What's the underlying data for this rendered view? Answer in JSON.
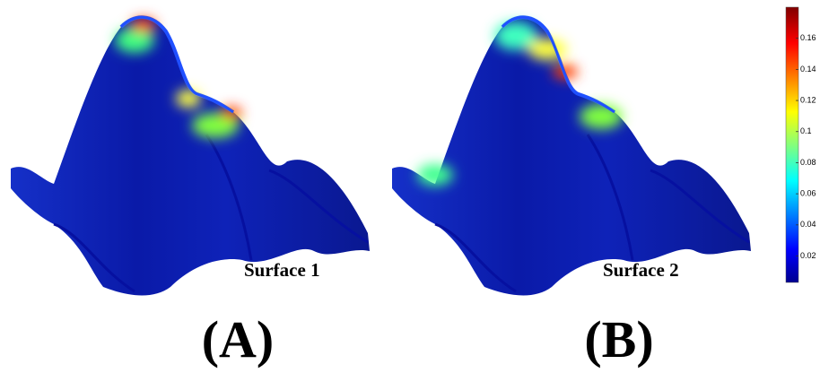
{
  "panels": [
    {
      "surface_label": "Surface 1",
      "panel_label": "(A)"
    },
    {
      "surface_label": "Surface 2",
      "panel_label": "(B)"
    }
  ],
  "colorbar": {
    "lim": [
      0.003,
      0.18
    ],
    "ticks": [
      0.02,
      0.04,
      0.06,
      0.08,
      0.1,
      0.12,
      0.14,
      0.16
    ]
  }
}
